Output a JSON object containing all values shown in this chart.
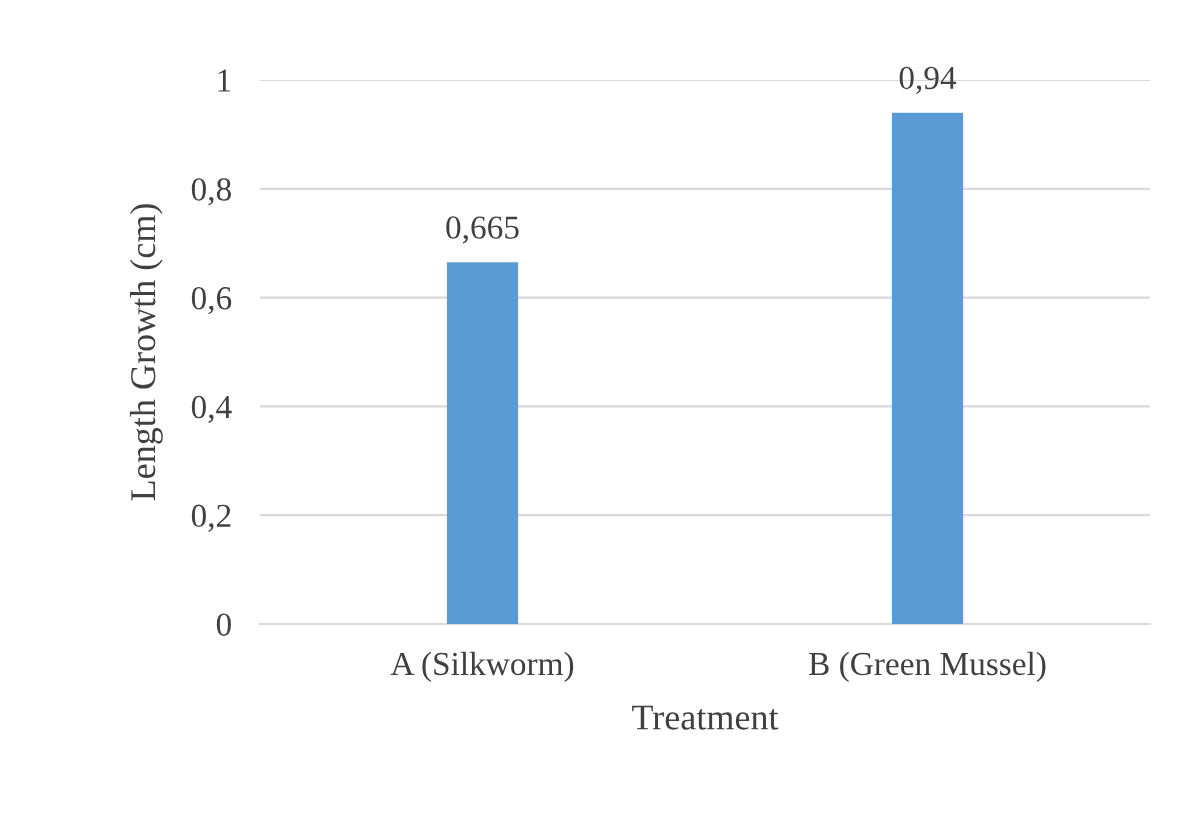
{
  "chart_data": {
    "type": "bar",
    "xlabel": "Treatment",
    "ylabel": "Length Growth (cm)",
    "categories": [
      "A (Silkworm)",
      "B (Green Mussel)"
    ],
    "values": [
      0.665,
      0.94
    ],
    "value_labels": [
      "0,665",
      "0,94"
    ],
    "color": "#5b9bd5",
    "ylim": [
      0,
      1
    ],
    "yticks": [
      {
        "value": 0,
        "label": "0"
      },
      {
        "value": 0.2,
        "label": "0,2"
      },
      {
        "value": 0.4,
        "label": "0,4"
      },
      {
        "value": 0.6,
        "label": "0,6"
      },
      {
        "value": 0.8,
        "label": "0,8"
      },
      {
        "value": 1,
        "label": "1"
      }
    ],
    "grid": "y",
    "legend": false
  }
}
